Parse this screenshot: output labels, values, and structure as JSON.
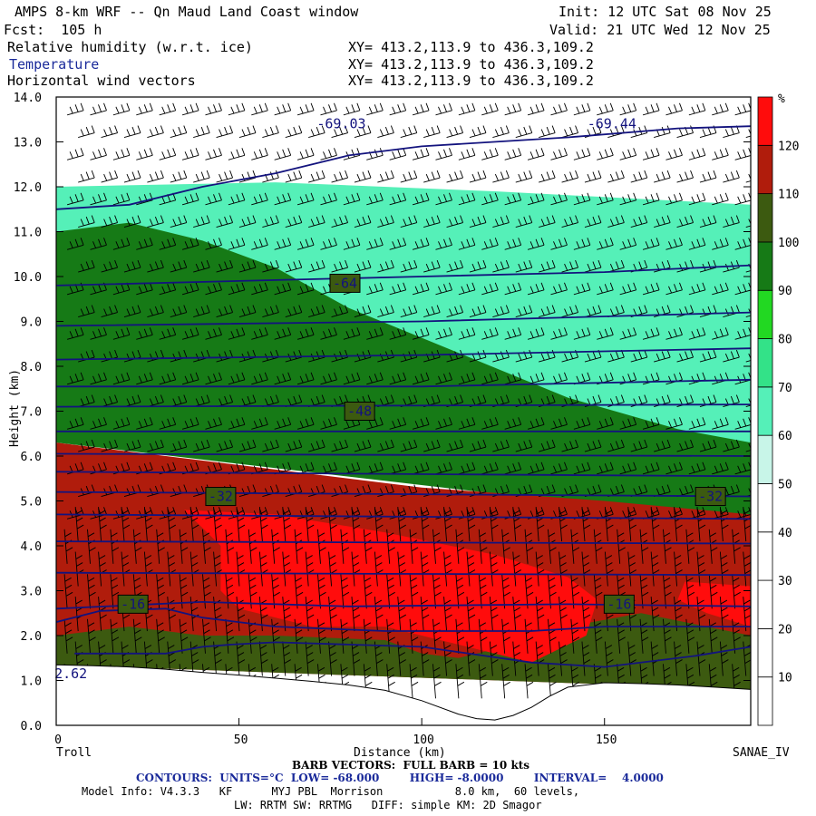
{
  "header": {
    "title": "AMPS 8-km WRF -- Qn Maud Land Coast window",
    "init": "Init: 12 UTC Sat 08 Nov 25",
    "fcst": "Fcst:  105 h",
    "valid": "Valid: 21 UTC Wed 12 Nov 25",
    "fields": [
      {
        "name": "Relative humidity (w.r.t. ice)",
        "xy": "XY= 413.2,113.9 to 436.3,109.2"
      },
      {
        "name": "Temperature",
        "xy": "XY= 413.2,113.9 to 436.3,109.2"
      },
      {
        "name": "Horizontal wind vectors",
        "xy": "XY= 413.2,113.9 to 436.3,109.2"
      }
    ]
  },
  "footer": {
    "left_endpoint": "Troll",
    "right_endpoint": "SANAE_IV",
    "barb_note": "BARB VECTORS:  FULL BARB = 10 kts",
    "contours_note": "CONTOURS:  UNITS=°C  LOW= -68.000        HIGH= -8.0000        INTERVAL=    4.0000",
    "model_info": "Model Info: V4.3.3   KF      MYJ PBL  Morrison           8.0 km,  60 levels,",
    "model_info2": "LW: RRTM SW: RRTMG   DIFF: simple KM: 2D Smagor"
  },
  "colors": {
    "axis": "#000000",
    "temperature_line": "#13137e",
    "terrain": "#ffffff",
    "colorbar": [
      "#ffffff",
      "#ffffff",
      "#ffffff",
      "#c8f5e8",
      "#55f0b8",
      "#33e288",
      "#22d822",
      "#167a16",
      "#3c5a10",
      "#b01c0c",
      "#ff0c0c"
    ]
  },
  "chart_data": {
    "type": "heatmap",
    "xlabel": "Distance (km)",
    "ylabel": "Height (km)",
    "xlim": [
      0,
      190
    ],
    "ylim": [
      0,
      14
    ],
    "xticks": [
      0,
      50,
      100,
      150
    ],
    "yticks": [
      "0.0",
      "1.0",
      "2.0",
      "3.0",
      "4.0",
      "5.0",
      "6.0",
      "7.0",
      "8.0",
      "9.0",
      "10.0",
      "11.0",
      "12.0",
      "13.0",
      "14.0"
    ],
    "colorbar": {
      "unit": "%",
      "labels": [
        "10",
        "20",
        "30",
        "40",
        "50",
        "60",
        "70",
        "80",
        "90",
        "100",
        "110",
        "120"
      ],
      "levels": [
        0,
        10,
        20,
        30,
        40,
        50,
        60,
        70,
        80,
        90,
        100,
        110,
        120,
        130
      ]
    },
    "terrain_height_km": [
      [
        0,
        1.35
      ],
      [
        10,
        1.33
      ],
      [
        20,
        1.3
      ],
      [
        30,
        1.25
      ],
      [
        40,
        1.18
      ],
      [
        50,
        1.12
      ],
      [
        60,
        1.05
      ],
      [
        70,
        0.98
      ],
      [
        80,
        0.9
      ],
      [
        90,
        0.78
      ],
      [
        100,
        0.55
      ],
      [
        110,
        0.25
      ],
      [
        115,
        0.15
      ],
      [
        120,
        0.12
      ],
      [
        125,
        0.22
      ],
      [
        130,
        0.4
      ],
      [
        135,
        0.65
      ],
      [
        140,
        0.85
      ],
      [
        150,
        0.95
      ],
      [
        160,
        0.93
      ],
      [
        170,
        0.9
      ],
      [
        180,
        0.85
      ],
      [
        190,
        0.8
      ]
    ],
    "rh_regions": [
      {
        "name": "band-30",
        "level": 30,
        "points": [
          [
            0,
            12.2
          ],
          [
            40,
            12.6
          ],
          [
            80,
            12.9
          ],
          [
            120,
            12.6
          ],
          [
            160,
            12.5
          ],
          [
            190,
            12.4
          ],
          [
            190,
            11.2
          ],
          [
            0,
            11.5
          ]
        ]
      },
      {
        "name": "band-50",
        "level": 50,
        "points": [
          [
            0,
            12.0
          ],
          [
            60,
            12.1
          ],
          [
            120,
            11.9
          ],
          [
            190,
            11.6
          ],
          [
            190,
            6.1
          ],
          [
            0,
            6.3
          ]
        ]
      },
      {
        "name": "band-80",
        "level": 80,
        "points": [
          [
            0,
            11.0
          ],
          [
            20,
            11.2
          ],
          [
            40,
            10.8
          ],
          [
            60,
            10.2
          ],
          [
            80,
            9.3
          ],
          [
            110,
            8.3
          ],
          [
            140,
            7.3
          ],
          [
            170,
            6.6
          ],
          [
            190,
            6.3
          ],
          [
            190,
            4.5
          ],
          [
            0,
            6.3
          ]
        ]
      },
      {
        "name": "band-100",
        "level": 100,
        "points": [
          [
            0,
            6.3
          ],
          [
            50,
            5.8
          ],
          [
            100,
            5.3
          ],
          [
            150,
            5.0
          ],
          [
            190,
            4.7
          ],
          [
            190,
            0.8
          ],
          [
            0,
            1.35
          ]
        ]
      },
      {
        "name": "band-90",
        "level": 90,
        "points": [
          [
            0,
            2.0
          ],
          [
            20,
            2.2
          ],
          [
            40,
            2.0
          ],
          [
            60,
            2.0
          ],
          [
            90,
            1.9
          ],
          [
            100,
            1.6
          ],
          [
            110,
            1.5
          ],
          [
            120,
            1.7
          ],
          [
            140,
            2.2
          ],
          [
            160,
            2.5
          ],
          [
            190,
            2.0
          ],
          [
            190,
            0.8
          ],
          [
            0,
            1.35
          ]
        ]
      },
      {
        "name": "band-110",
        "level": 110,
        "points": [
          [
            35,
            4.8
          ],
          [
            60,
            4.7
          ],
          [
            90,
            4.3
          ],
          [
            120,
            3.8
          ],
          [
            140,
            3.3
          ],
          [
            148,
            2.8
          ],
          [
            145,
            2.0
          ],
          [
            130,
            1.4
          ],
          [
            110,
            1.8
          ],
          [
            90,
            2.2
          ],
          [
            70,
            2.2
          ],
          [
            50,
            2.6
          ],
          [
            45,
            3.0
          ],
          [
            45,
            4.0
          ]
        ]
      },
      {
        "name": "band-120",
        "level": 120,
        "points": [
          [
            90,
            3.9
          ],
          [
            110,
            3.6
          ],
          [
            125,
            3.3
          ],
          [
            122,
            3.0
          ],
          [
            105,
            3.2
          ],
          [
            92,
            3.5
          ]
        ]
      },
      {
        "name": "band-110-right",
        "level": 110,
        "points": [
          [
            172,
            3.2
          ],
          [
            190,
            3.1
          ],
          [
            190,
            2.2
          ],
          [
            178,
            2.5
          ],
          [
            170,
            2.8
          ]
        ]
      }
    ],
    "temperature_contours": [
      {
        "points": [
          [
            0,
            11.5
          ],
          [
            20,
            11.6
          ],
          [
            40,
            12.0
          ],
          [
            60,
            12.3
          ],
          [
            80,
            12.7
          ],
          [
            100,
            12.9
          ],
          [
            140,
            13.1
          ],
          [
            170,
            13.3
          ],
          [
            190,
            13.35
          ]
        ]
      },
      {
        "points": [
          [
            0,
            9.8
          ],
          [
            50,
            9.9
          ],
          [
            100,
            10.0
          ],
          [
            150,
            10.1
          ],
          [
            190,
            10.25
          ]
        ]
      },
      {
        "points": [
          [
            0,
            8.9
          ],
          [
            100,
            9.0
          ],
          [
            190,
            9.2
          ]
        ]
      },
      {
        "points": [
          [
            0,
            8.15
          ],
          [
            100,
            8.25
          ],
          [
            190,
            8.4
          ]
        ]
      },
      {
        "points": [
          [
            0,
            7.55
          ],
          [
            100,
            7.55
          ],
          [
            190,
            7.7
          ]
        ]
      },
      {
        "points": [
          [
            0,
            7.1
          ],
          [
            190,
            7.15
          ]
        ]
      },
      {
        "points": [
          [
            0,
            6.55
          ],
          [
            190,
            6.55
          ]
        ]
      },
      {
        "points": [
          [
            0,
            6.05
          ],
          [
            190,
            6.0
          ]
        ]
      },
      {
        "points": [
          [
            0,
            5.65
          ],
          [
            190,
            5.55
          ]
        ]
      },
      {
        "points": [
          [
            0,
            5.2
          ],
          [
            190,
            5.1
          ]
        ]
      },
      {
        "points": [
          [
            0,
            4.7
          ],
          [
            190,
            4.6
          ]
        ]
      },
      {
        "points": [
          [
            0,
            4.1
          ],
          [
            190,
            4.05
          ]
        ]
      },
      {
        "points": [
          [
            0,
            3.4
          ],
          [
            190,
            3.35
          ]
        ]
      },
      {
        "points": [
          [
            0,
            2.6
          ],
          [
            40,
            2.75
          ],
          [
            80,
            2.65
          ],
          [
            140,
            2.7
          ],
          [
            190,
            2.65
          ]
        ]
      },
      {
        "points": [
          [
            0,
            2.3
          ],
          [
            12,
            2.55
          ],
          [
            30,
            2.6
          ],
          [
            40,
            2.4
          ],
          [
            60,
            2.2
          ],
          [
            90,
            2.1
          ],
          [
            130,
            2.1
          ],
          [
            150,
            2.2
          ],
          [
            190,
            2.2
          ]
        ]
      },
      {
        "points": [
          [
            5,
            1.6
          ],
          [
            30,
            1.6
          ],
          [
            40,
            1.75
          ],
          [
            48,
            1.8
          ],
          [
            60,
            1.85
          ],
          [
            80,
            1.8
          ],
          [
            100,
            1.75
          ],
          [
            130,
            1.4
          ],
          [
            150,
            1.3
          ],
          [
            175,
            1.55
          ],
          [
            190,
            1.75
          ]
        ]
      }
    ],
    "contour_labels": [
      {
        "text": "-69.03",
        "x": 78,
        "y": 13.4
      },
      {
        "text": "-69.44",
        "x": 152,
        "y": 13.4
      },
      {
        "text": "-64",
        "x": 79,
        "y": 9.85
      },
      {
        "text": "-48",
        "x": 83,
        "y": 7.0
      },
      {
        "text": "-32",
        "x": 45,
        "y": 5.1
      },
      {
        "text": "-32",
        "x": 179,
        "y": 5.1
      },
      {
        "text": "-16",
        "x": 21,
        "y": 2.7
      },
      {
        "text": "-16",
        "x": 154,
        "y": 2.7
      },
      {
        "text": "2.62",
        "x": 4,
        "y": 1.15
      }
    ]
  }
}
